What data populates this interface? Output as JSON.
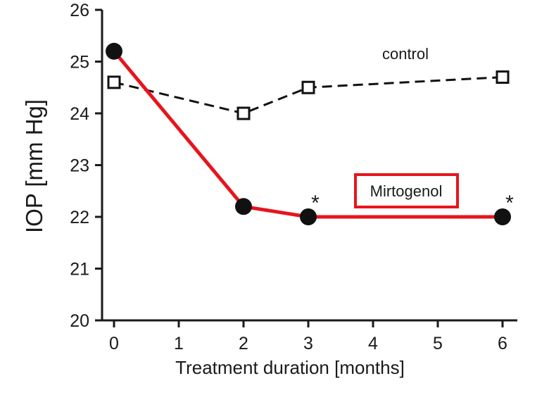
{
  "chart_data": {
    "type": "line",
    "xlabel": "Treatment duration [months]",
    "ylabel": "IOP [mm Hg]",
    "xlim": [
      0,
      6
    ],
    "ylim": [
      20,
      26
    ],
    "xticks": [
      "0",
      "1",
      "2",
      "3",
      "4",
      "5",
      "6"
    ],
    "yticks": [
      "20",
      "21",
      "22",
      "23",
      "24",
      "25",
      "26"
    ],
    "grid": false,
    "series": [
      {
        "name": "control",
        "x": [
          0,
          2,
          3,
          6
        ],
        "y": [
          24.6,
          24.0,
          24.5,
          24.7
        ],
        "color": "#111111",
        "line": "dashed",
        "marker": "open-square"
      },
      {
        "name": "Mirtogenol",
        "x": [
          0,
          2,
          3,
          6
        ],
        "y": [
          25.2,
          22.2,
          22.0,
          22.0
        ],
        "color": "#e8141c",
        "line": "solid",
        "marker": "filled-circle"
      }
    ],
    "annotations": [
      {
        "text": "*",
        "x": 3,
        "y": 22.0
      },
      {
        "text": "*",
        "x": 6,
        "y": 22.0
      }
    ],
    "colors": {
      "axis": "#1a1a1a",
      "highlight_box": "#e8141c"
    }
  }
}
